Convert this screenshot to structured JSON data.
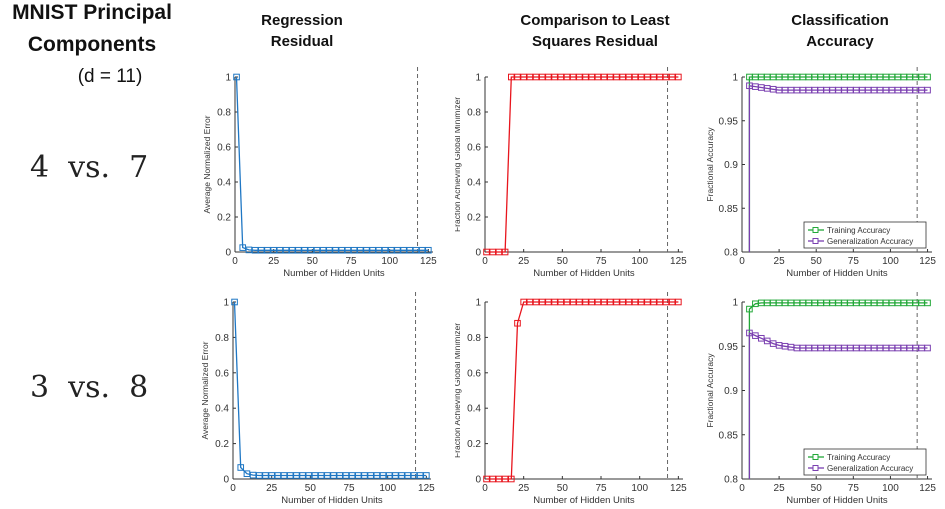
{
  "header": {
    "title_line1": "MNIST Principal",
    "title_line2": "Components",
    "title_d": "(d = 11)",
    "col1_line1": "Regression",
    "col1_line2": "Residual",
    "col2_line1": "Comparison to Least",
    "col2_line2": "Squares Residual",
    "col3_line1": "Classification",
    "col3_line2": "Accuracy"
  },
  "rows": [
    {
      "label": "4  vs.  7"
    },
    {
      "label": "3  vs.  8"
    }
  ],
  "colors": {
    "blue": "#1f77c4",
    "red": "#e8151d",
    "green": "#22a838",
    "purple": "#7a3fb0"
  },
  "chart_data": [
    {
      "id": "r1c1",
      "type": "line",
      "xlabel": "Number of Hidden Units",
      "ylabel": "Average Normalized Error",
      "xlim": [
        0,
        128
      ],
      "ylim": [
        0,
        1
      ],
      "xticks": [
        0,
        25,
        50,
        75,
        100,
        125
      ],
      "yticks": [
        0,
        0.2,
        0.4,
        0.6,
        0.8,
        1
      ],
      "ytick_labels": [
        "0",
        "0.2",
        "0.4",
        "0.6",
        "0.8",
        "1"
      ],
      "vline": 118,
      "series": [
        {
          "color": "blue",
          "x": [
            1,
            5,
            9,
            13,
            17,
            21,
            25,
            29,
            33,
            37,
            41,
            45,
            49,
            53,
            57,
            61,
            65,
            69,
            73,
            77,
            81,
            85,
            89,
            93,
            97,
            101,
            105,
            109,
            113,
            117,
            121,
            125
          ],
          "y": [
            1,
            0.025,
            0.012,
            0.01,
            0.01,
            0.01,
            0.01,
            0.01,
            0.01,
            0.01,
            0.01,
            0.01,
            0.01,
            0.01,
            0.01,
            0.01,
            0.01,
            0.01,
            0.01,
            0.01,
            0.01,
            0.01,
            0.01,
            0.01,
            0.01,
            0.01,
            0.01,
            0.01,
            0.01,
            0.01,
            0.01,
            0.01
          ]
        }
      ]
    },
    {
      "id": "r1c2",
      "type": "line",
      "xlabel": "Number of Hidden Units",
      "ylabel": "Fraction Achieving Global Minimizer",
      "xlim": [
        0,
        128
      ],
      "ylim": [
        0,
        1
      ],
      "xticks": [
        0,
        25,
        50,
        75,
        100,
        125
      ],
      "yticks": [
        0,
        0.2,
        0.4,
        0.6,
        0.8,
        1
      ],
      "ytick_labels": [
        "0",
        "0.2",
        "0.4",
        "0.6",
        "0.8",
        "1"
      ],
      "vline": 118,
      "series": [
        {
          "color": "red",
          "x": [
            1,
            5,
            9,
            13,
            17,
            21,
            25,
            29,
            33,
            37,
            41,
            45,
            49,
            53,
            57,
            61,
            65,
            69,
            73,
            77,
            81,
            85,
            89,
            93,
            97,
            101,
            105,
            109,
            113,
            117,
            121,
            125
          ],
          "y": [
            0,
            0,
            0,
            0,
            1,
            1,
            1,
            1,
            1,
            1,
            1,
            1,
            1,
            1,
            1,
            1,
            1,
            1,
            1,
            1,
            1,
            1,
            1,
            1,
            1,
            1,
            1,
            1,
            1,
            1,
            1,
            1
          ]
        }
      ]
    },
    {
      "id": "r1c3",
      "type": "line",
      "xlabel": "Number of Hidden Units",
      "ylabel": "Fractional Accuracy",
      "xlim": [
        0,
        128
      ],
      "ylim": [
        0.8,
        1
      ],
      "xticks": [
        0,
        25,
        50,
        75,
        100,
        125
      ],
      "yticks": [
        0.8,
        0.85,
        0.9,
        0.95,
        1
      ],
      "ytick_labels": [
        "0.8",
        "0.85",
        "0.9",
        "0.95",
        "1"
      ],
      "vline": 118,
      "legend": [
        "Training Accuracy",
        "Generalization Accuracy"
      ],
      "legend_position": "bottom-right",
      "series": [
        {
          "name": "Training Accuracy",
          "color": "green",
          "x": [
            5,
            9,
            13,
            17,
            21,
            25,
            29,
            33,
            37,
            41,
            45,
            49,
            53,
            57,
            61,
            65,
            69,
            73,
            77,
            81,
            85,
            89,
            93,
            97,
            101,
            105,
            109,
            113,
            117,
            121,
            125
          ],
          "y": [
            1,
            1,
            1,
            1,
            1,
            1,
            1,
            1,
            1,
            1,
            1,
            1,
            1,
            1,
            1,
            1,
            1,
            1,
            1,
            1,
            1,
            1,
            1,
            1,
            1,
            1,
            1,
            1,
            1,
            1,
            1
          ],
          "drop_to": 0.8
        },
        {
          "name": "Generalization Accuracy",
          "color": "purple",
          "x": [
            5,
            9,
            13,
            17,
            21,
            25,
            29,
            33,
            37,
            41,
            45,
            49,
            53,
            57,
            61,
            65,
            69,
            73,
            77,
            81,
            85,
            89,
            93,
            97,
            101,
            105,
            109,
            113,
            117,
            121,
            125
          ],
          "y": [
            0.99,
            0.989,
            0.988,
            0.987,
            0.986,
            0.985,
            0.985,
            0.985,
            0.985,
            0.985,
            0.985,
            0.985,
            0.985,
            0.985,
            0.985,
            0.985,
            0.985,
            0.985,
            0.985,
            0.985,
            0.985,
            0.985,
            0.985,
            0.985,
            0.985,
            0.985,
            0.985,
            0.985,
            0.985,
            0.985,
            0.985
          ],
          "drop_to": 0.8
        }
      ]
    },
    {
      "id": "r2c1",
      "type": "line",
      "xlabel": "Number of Hidden Units",
      "ylabel": "Average Normalized Error",
      "xlim": [
        0,
        128
      ],
      "ylim": [
        0,
        1
      ],
      "xticks": [
        0,
        25,
        50,
        75,
        100,
        125
      ],
      "yticks": [
        0,
        0.2,
        0.4,
        0.6,
        0.8,
        1
      ],
      "ytick_labels": [
        "0",
        "0.2",
        "0.4",
        "0.6",
        "0.8",
        "1"
      ],
      "vline": 118,
      "series": [
        {
          "color": "blue",
          "x": [
            1,
            5,
            9,
            13,
            17,
            21,
            25,
            29,
            33,
            37,
            41,
            45,
            49,
            53,
            57,
            61,
            65,
            69,
            73,
            77,
            81,
            85,
            89,
            93,
            97,
            101,
            105,
            109,
            113,
            117,
            121,
            125
          ],
          "y": [
            1,
            0.065,
            0.03,
            0.022,
            0.02,
            0.02,
            0.02,
            0.02,
            0.02,
            0.02,
            0.02,
            0.02,
            0.02,
            0.02,
            0.02,
            0.02,
            0.02,
            0.02,
            0.02,
            0.02,
            0.02,
            0.02,
            0.02,
            0.02,
            0.02,
            0.02,
            0.02,
            0.02,
            0.02,
            0.02,
            0.02,
            0.02
          ]
        }
      ]
    },
    {
      "id": "r2c2",
      "type": "line",
      "xlabel": "Number of Hidden Units",
      "ylabel": "Fraction Achieving Global Minimizer",
      "xlim": [
        0,
        128
      ],
      "ylim": [
        0,
        1
      ],
      "xticks": [
        0,
        25,
        50,
        75,
        100,
        125
      ],
      "yticks": [
        0,
        0.2,
        0.4,
        0.6,
        0.8,
        1
      ],
      "ytick_labels": [
        "0",
        "0.2",
        "0.4",
        "0.6",
        "0.8",
        "1"
      ],
      "vline": 118,
      "series": [
        {
          "color": "red",
          "x": [
            1,
            5,
            9,
            13,
            17,
            21,
            25,
            29,
            33,
            37,
            41,
            45,
            49,
            53,
            57,
            61,
            65,
            69,
            73,
            77,
            81,
            85,
            89,
            93,
            97,
            101,
            105,
            109,
            113,
            117,
            121,
            125
          ],
          "y": [
            0,
            0,
            0,
            0,
            0,
            0.88,
            1,
            1,
            1,
            1,
            1,
            1,
            1,
            1,
            1,
            1,
            1,
            1,
            1,
            1,
            1,
            1,
            1,
            1,
            1,
            1,
            1,
            1,
            1,
            1,
            1,
            1
          ]
        }
      ]
    },
    {
      "id": "r2c3",
      "type": "line",
      "xlabel": "Number of Hidden Units",
      "ylabel": "Fractional Accuracy",
      "xlim": [
        0,
        128
      ],
      "ylim": [
        0.8,
        1
      ],
      "xticks": [
        0,
        25,
        50,
        75,
        100,
        125
      ],
      "yticks": [
        0.8,
        0.85,
        0.9,
        0.95,
        1
      ],
      "ytick_labels": [
        "0.8",
        "0.85",
        "0.9",
        "0.95",
        "1"
      ],
      "vline": 118,
      "legend": [
        "Training Accuracy",
        "Generalization Accuracy"
      ],
      "legend_position": "bottom-right",
      "series": [
        {
          "name": "Training Accuracy",
          "color": "green",
          "x": [
            5,
            9,
            13,
            17,
            21,
            25,
            29,
            33,
            37,
            41,
            45,
            49,
            53,
            57,
            61,
            65,
            69,
            73,
            77,
            81,
            85,
            89,
            93,
            97,
            101,
            105,
            109,
            113,
            117,
            121,
            125
          ],
          "y": [
            0.992,
            0.998,
            0.999,
            0.999,
            0.999,
            0.999,
            0.999,
            0.999,
            0.999,
            0.999,
            0.999,
            0.999,
            0.999,
            0.999,
            0.999,
            0.999,
            0.999,
            0.999,
            0.999,
            0.999,
            0.999,
            0.999,
            0.999,
            0.999,
            0.999,
            0.999,
            0.999,
            0.999,
            0.999,
            0.999,
            0.999
          ],
          "drop_to": 0.8
        },
        {
          "name": "Generalization Accuracy",
          "color": "purple",
          "x": [
            5,
            9,
            13,
            17,
            21,
            25,
            29,
            33,
            37,
            41,
            45,
            49,
            53,
            57,
            61,
            65,
            69,
            73,
            77,
            81,
            85,
            89,
            93,
            97,
            101,
            105,
            109,
            113,
            117,
            121,
            125
          ],
          "y": [
            0.965,
            0.962,
            0.959,
            0.956,
            0.953,
            0.951,
            0.95,
            0.949,
            0.948,
            0.948,
            0.948,
            0.948,
            0.948,
            0.948,
            0.948,
            0.948,
            0.948,
            0.948,
            0.948,
            0.948,
            0.948,
            0.948,
            0.948,
            0.948,
            0.948,
            0.948,
            0.948,
            0.948,
            0.948,
            0.948,
            0.948
          ],
          "drop_to": 0.8
        }
      ]
    }
  ]
}
